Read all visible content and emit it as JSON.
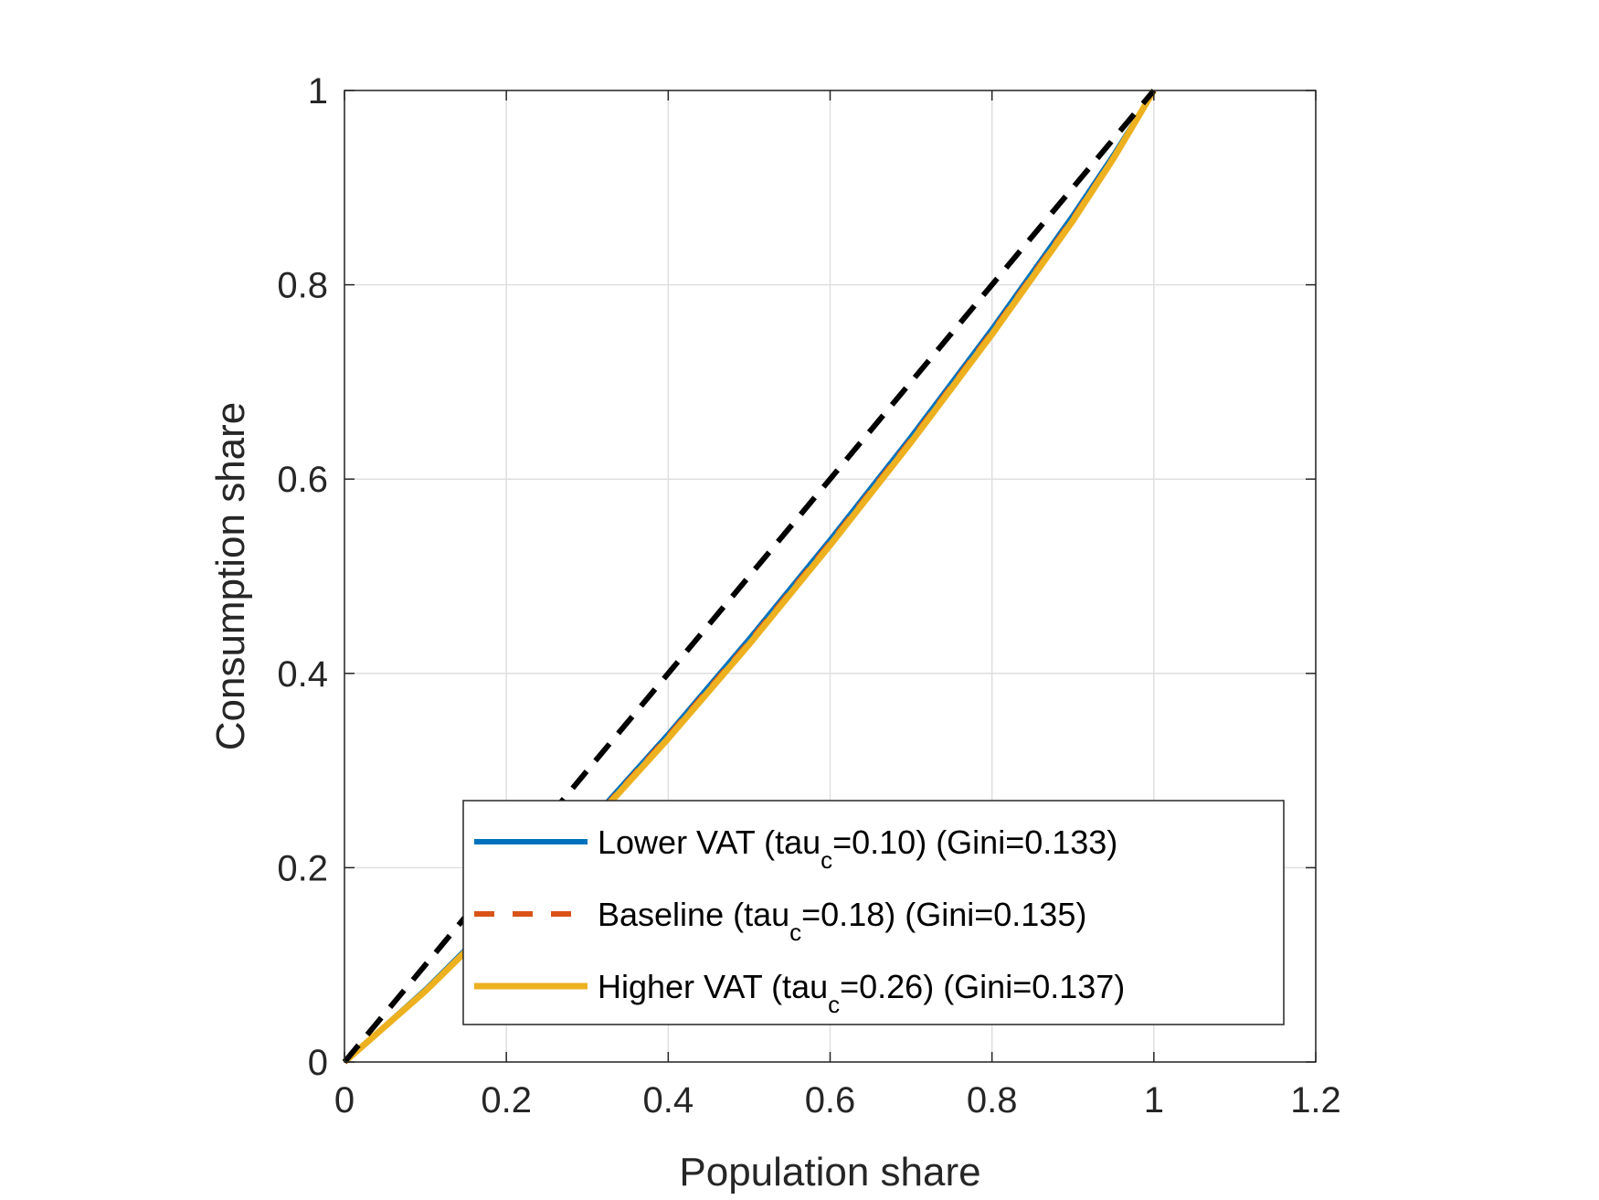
{
  "chart_data": {
    "type": "line",
    "xlabel": "Population share",
    "ylabel": "Consumption share",
    "xlim": [
      0,
      1.2
    ],
    "ylim": [
      0,
      1
    ],
    "xticks": [
      "0",
      "0.2",
      "0.4",
      "0.6",
      "0.8",
      "1",
      "1.2"
    ],
    "yticks": [
      "0",
      "0.2",
      "0.4",
      "0.6",
      "0.8",
      "1"
    ],
    "grid": true,
    "legend_position": "bottom-right",
    "equality_line": {
      "x": [
        0,
        1
      ],
      "y": [
        0,
        1
      ],
      "color": "#000000",
      "style": "dashed"
    },
    "series": [
      {
        "legend_pre": "Lower VAT (tau",
        "legend_sub": "c",
        "legend_post": "=0.10) (Gini=0.133)",
        "color": "#0072BD",
        "style": "solid",
        "x": [
          0,
          0.1,
          0.2,
          0.3,
          0.4,
          0.5,
          0.6,
          0.7,
          0.8,
          0.9,
          0.95,
          1.0
        ],
        "y": [
          0,
          0.075,
          0.158,
          0.245,
          0.338,
          0.436,
          0.538,
          0.644,
          0.755,
          0.872,
          0.934,
          1.0
        ]
      },
      {
        "legend_pre": "Baseline (tau",
        "legend_sub": "c",
        "legend_post": "=0.18) (Gini=0.135)",
        "color": "#D95319",
        "style": "dashed",
        "x": [
          0,
          0.1,
          0.2,
          0.3,
          0.4,
          0.5,
          0.6,
          0.7,
          0.8,
          0.9,
          0.95,
          1.0
        ],
        "y": [
          0,
          0.074,
          0.156,
          0.243,
          0.336,
          0.433,
          0.535,
          0.641,
          0.752,
          0.869,
          0.932,
          1.0
        ]
      },
      {
        "legend_pre": "Higher VAT (tau",
        "legend_sub": "c",
        "legend_post": "=0.26) (Gini=0.137)",
        "color": "#EDB120",
        "style": "solid",
        "x": [
          0,
          0.1,
          0.2,
          0.3,
          0.4,
          0.5,
          0.6,
          0.7,
          0.8,
          0.9,
          0.95,
          1.0
        ],
        "y": [
          0,
          0.073,
          0.155,
          0.241,
          0.333,
          0.43,
          0.532,
          0.638,
          0.749,
          0.866,
          0.93,
          1.0
        ]
      }
    ]
  }
}
